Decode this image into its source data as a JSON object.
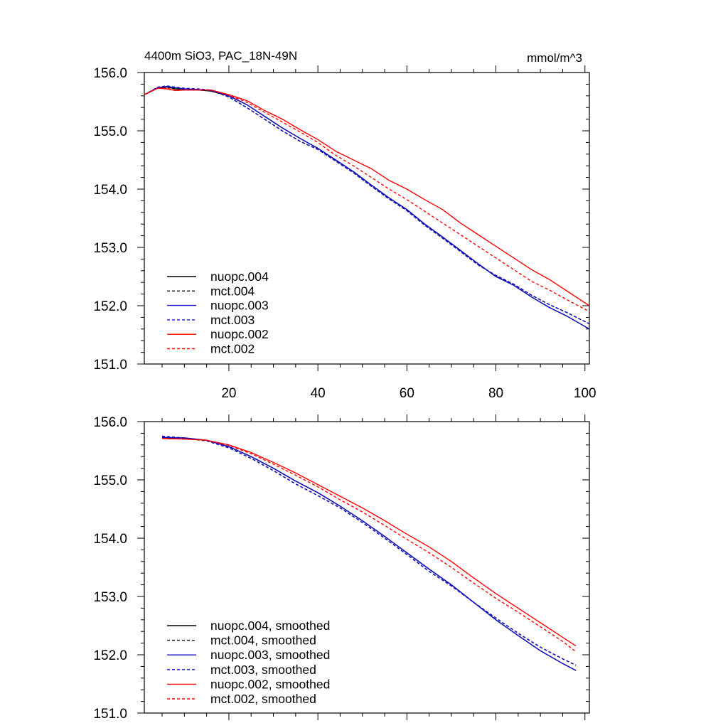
{
  "page": {
    "title": "4400m SiO3, PAC_18N-49N",
    "units": "mmol/m^3"
  },
  "colors": {
    "black": "#000000",
    "blue": "#1010c8",
    "red": "#ff0000",
    "axis": "#000000"
  },
  "chart_data": [
    {
      "type": "line",
      "title": "4400m SiO3, PAC_18N-49N",
      "units": "mmol/m^3",
      "xlim": [
        1,
        101
      ],
      "ylim": [
        151.0,
        156.0
      ],
      "x_ticks": [
        20,
        40,
        60,
        80,
        100
      ],
      "x_tick_labels": [
        "20",
        "40",
        "60",
        "80",
        "100"
      ],
      "y_ticks": [
        151.0,
        152.0,
        153.0,
        154.0,
        155.0,
        156.0
      ],
      "y_tick_labels": [
        "151.0",
        "152.0",
        "153.0",
        "154.0",
        "155.0",
        "156.0"
      ],
      "grid": false,
      "legend_position": "bottom-left",
      "x": [
        1,
        4,
        6,
        8,
        10,
        13,
        16,
        20,
        24,
        28,
        32,
        36,
        40,
        44,
        48,
        52,
        56,
        60,
        64,
        68,
        72,
        76,
        80,
        84,
        88,
        92,
        96,
        101
      ],
      "series": [
        {
          "name": "nuopc.004",
          "color": "black",
          "dash": false,
          "values": [
            155.62,
            155.73,
            155.75,
            155.72,
            155.7,
            155.7,
            155.68,
            155.6,
            155.45,
            155.25,
            155.05,
            154.87,
            154.7,
            154.5,
            154.3,
            154.07,
            153.85,
            153.65,
            153.4,
            153.18,
            152.95,
            152.72,
            152.5,
            152.35,
            152.15,
            151.97,
            151.82,
            151.6
          ]
        },
        {
          "name": "mct.004",
          "color": "black",
          "dash": true,
          "values": [
            155.62,
            155.74,
            155.75,
            155.73,
            155.71,
            155.71,
            155.69,
            155.58,
            155.4,
            155.2,
            155.0,
            154.82,
            154.68,
            154.48,
            154.28,
            154.05,
            153.83,
            153.63,
            153.38,
            153.16,
            152.93,
            152.7,
            152.52,
            152.37,
            152.18,
            152.02,
            151.88,
            151.69
          ]
        },
        {
          "name": "nuopc.003",
          "color": "blue",
          "dash": false,
          "values": [
            155.62,
            155.74,
            155.76,
            155.74,
            155.72,
            155.71,
            155.69,
            155.6,
            155.45,
            155.25,
            155.05,
            154.87,
            154.7,
            154.5,
            154.3,
            154.07,
            153.85,
            153.65,
            153.4,
            153.18,
            152.95,
            152.72,
            152.5,
            152.35,
            152.15,
            151.97,
            151.82,
            151.6
          ]
        },
        {
          "name": "mct.003",
          "color": "blue",
          "dash": true,
          "values": [
            155.62,
            155.75,
            155.77,
            155.75,
            155.73,
            155.72,
            155.7,
            155.58,
            155.4,
            155.2,
            155.0,
            154.82,
            154.68,
            154.48,
            154.28,
            154.05,
            153.83,
            153.63,
            153.38,
            153.16,
            152.93,
            152.7,
            152.52,
            152.37,
            152.18,
            152.02,
            151.88,
            151.69
          ]
        },
        {
          "name": "nuopc.002",
          "color": "red",
          "dash": false,
          "values": [
            155.62,
            155.73,
            155.72,
            155.69,
            155.7,
            155.7,
            155.7,
            155.62,
            155.52,
            155.35,
            155.2,
            155.02,
            154.85,
            154.65,
            154.5,
            154.35,
            154.15,
            154.0,
            153.82,
            153.65,
            153.42,
            153.22,
            153.02,
            152.82,
            152.62,
            152.45,
            152.25,
            152.0
          ]
        },
        {
          "name": "mct.002",
          "color": "red",
          "dash": true,
          "values": [
            155.62,
            155.73,
            155.73,
            155.7,
            155.7,
            155.7,
            155.7,
            155.61,
            155.49,
            155.32,
            155.15,
            154.98,
            154.8,
            154.58,
            154.4,
            154.2,
            154.0,
            153.82,
            153.62,
            153.42,
            153.22,
            153.02,
            152.82,
            152.62,
            152.42,
            152.27,
            152.1,
            151.9
          ]
        }
      ]
    },
    {
      "type": "line",
      "xlim": [
        1,
        101
      ],
      "ylim": [
        151.0,
        156.0
      ],
      "x_ticks": [
        20,
        40,
        60,
        80,
        100
      ],
      "y_ticks": [
        151.0,
        152.0,
        153.0,
        154.0,
        155.0,
        156.0
      ],
      "y_tick_labels": [
        "151.0",
        "152.0",
        "153.0",
        "154.0",
        "155.0",
        "156.0"
      ],
      "grid": false,
      "legend_position": "bottom-left",
      "x": [
        5,
        10,
        15,
        20,
        25,
        30,
        35,
        40,
        45,
        50,
        55,
        60,
        65,
        70,
        75,
        80,
        85,
        90,
        95,
        98
      ],
      "series": [
        {
          "name": "nuopc.004, smoothed",
          "color": "black",
          "dash": false,
          "values": [
            155.72,
            155.72,
            155.68,
            155.57,
            155.4,
            155.2,
            154.98,
            154.78,
            154.55,
            154.3,
            154.03,
            153.75,
            153.47,
            153.2,
            152.9,
            152.6,
            152.33,
            152.07,
            151.85,
            151.73
          ]
        },
        {
          "name": "mct.004, smoothed",
          "color": "black",
          "dash": true,
          "values": [
            155.73,
            155.71,
            155.67,
            155.55,
            155.37,
            155.16,
            154.93,
            154.73,
            154.52,
            154.27,
            154.0,
            153.72,
            153.43,
            153.18,
            152.9,
            152.63,
            152.37,
            152.13,
            151.93,
            151.82
          ]
        },
        {
          "name": "nuopc.003, smoothed",
          "color": "blue",
          "dash": false,
          "values": [
            155.73,
            155.72,
            155.68,
            155.57,
            155.4,
            155.2,
            154.98,
            154.78,
            154.55,
            154.3,
            154.03,
            153.75,
            153.47,
            153.2,
            152.9,
            152.6,
            152.33,
            152.07,
            151.85,
            151.73
          ]
        },
        {
          "name": "mct.003, smoothed",
          "color": "blue",
          "dash": true,
          "values": [
            155.75,
            155.72,
            155.67,
            155.55,
            155.37,
            155.16,
            154.93,
            154.73,
            154.52,
            154.27,
            154.0,
            153.72,
            153.43,
            153.18,
            152.9,
            152.63,
            152.37,
            152.13,
            151.93,
            151.82
          ]
        },
        {
          "name": "nuopc.002, smoothed",
          "color": "red",
          "dash": false,
          "values": [
            155.71,
            155.7,
            155.68,
            155.6,
            155.47,
            155.3,
            155.12,
            154.92,
            154.72,
            154.52,
            154.3,
            154.07,
            153.85,
            153.6,
            153.32,
            153.05,
            152.8,
            152.55,
            152.3,
            152.15
          ]
        },
        {
          "name": "mct.002, smoothed",
          "color": "red",
          "dash": true,
          "values": [
            155.71,
            155.7,
            155.68,
            155.59,
            155.45,
            155.27,
            155.08,
            154.88,
            154.66,
            154.45,
            154.22,
            153.98,
            153.75,
            153.5,
            153.23,
            152.97,
            152.73,
            152.48,
            152.23,
            152.05
          ]
        }
      ]
    }
  ]
}
